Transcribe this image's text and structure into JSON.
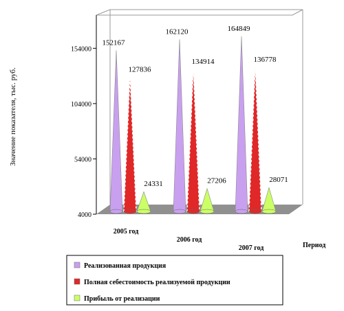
{
  "chart_data": {
    "type": "cone",
    "y_label": "Значение показателя, тыс. руб.",
    "x_label": "Период",
    "categories": [
      "2005 год",
      "2006 год",
      "2007 год"
    ],
    "series": [
      {
        "name": "Реализованная продукция",
        "color": "#c9a0f0",
        "values": [
          152167,
          162120,
          164849
        ]
      },
      {
        "name": "Полная себестоимость реализуемой продукции",
        "color": "#e02828",
        "values": [
          127836,
          134914,
          136778
        ]
      },
      {
        "name": "Прибыль от реализации",
        "color": "#ccff66",
        "values": [
          24331,
          27206,
          28071
        ]
      }
    ],
    "ylim": [
      4000,
      184000
    ],
    "yticks": [
      4000,
      54000,
      104000,
      154000
    ]
  }
}
